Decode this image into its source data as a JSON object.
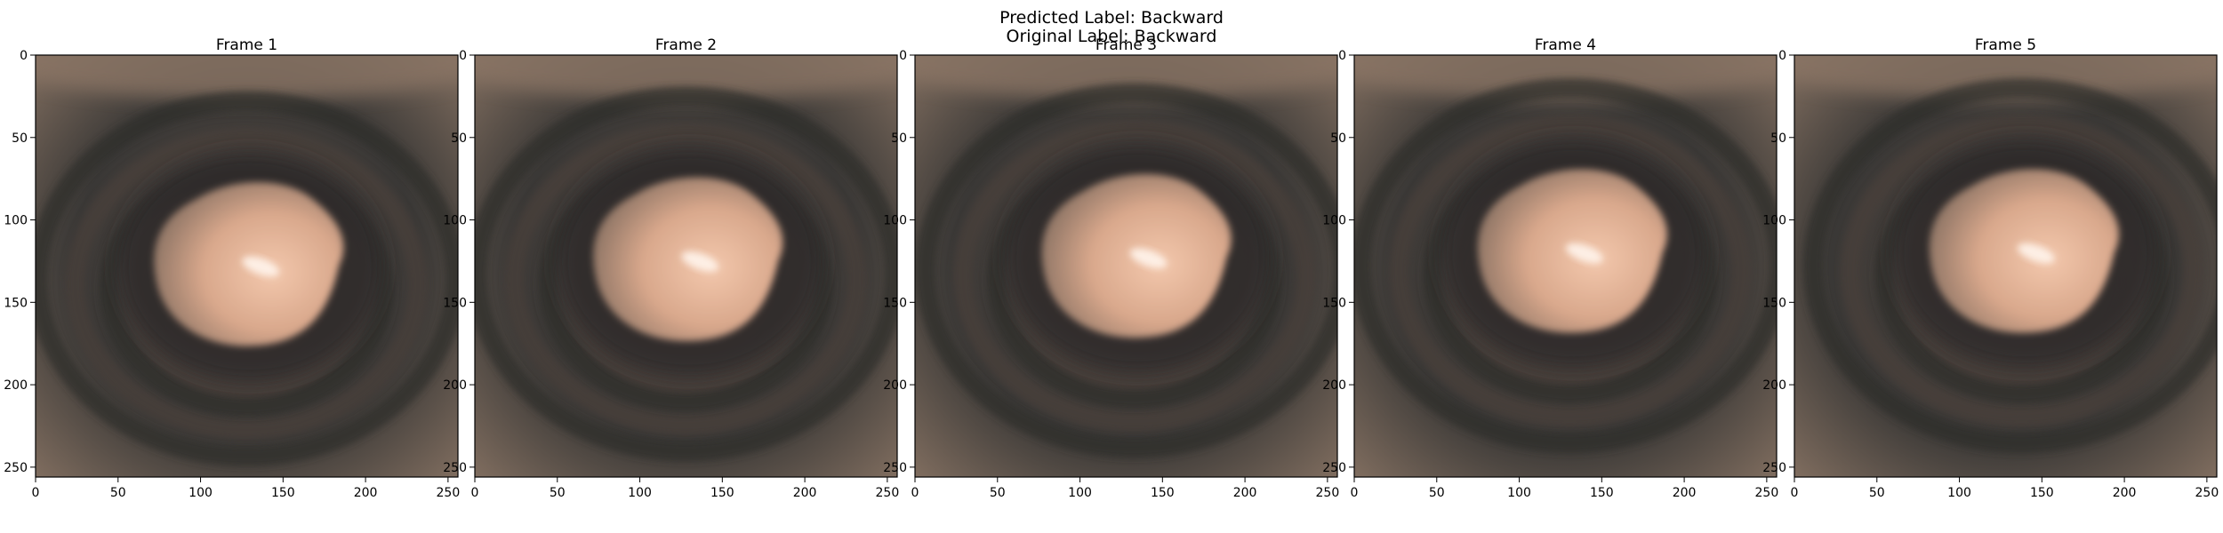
{
  "figure": {
    "suptitle_line1": "Predicted Label: Backward",
    "suptitle_line2": "Original Label: Backward"
  },
  "frames": [
    {
      "title": "Frame 1",
      "lumen_cx": 130,
      "lumen_cy": 125
    },
    {
      "title": "Frame 2",
      "lumen_cx": 130,
      "lumen_cy": 122
    },
    {
      "title": "Frame 3",
      "lumen_cx": 135,
      "lumen_cy": 120
    },
    {
      "title": "Frame 4",
      "lumen_cx": 133,
      "lumen_cy": 117
    },
    {
      "title": "Frame 5",
      "lumen_cx": 140,
      "lumen_cy": 117
    }
  ],
  "axes": {
    "x_ticks": [
      0,
      50,
      100,
      150,
      200,
      250
    ],
    "y_ticks": [
      0,
      50,
      100,
      150,
      200,
      250
    ],
    "xlim": [
      0,
      256
    ],
    "ylim": [
      256,
      0
    ]
  },
  "colors": {
    "wall_dark": "#3a3836",
    "wall_mid": "#5a4d46",
    "wall_light": "#8a7565",
    "lumen_light": "#f3c8ad",
    "lumen_mid": "#d9a88c",
    "lumen_shadow": "#8a7263",
    "highlight": "#fff4ec"
  }
}
